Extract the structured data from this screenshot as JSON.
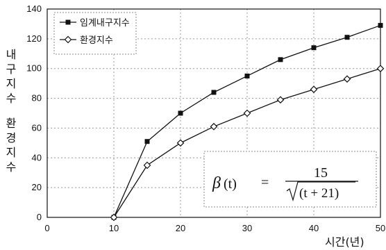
{
  "chart_data": {
    "type": "line",
    "xlim": [
      0,
      50
    ],
    "ylim": [
      0,
      140
    ],
    "xticks": [
      0,
      10,
      20,
      30,
      40,
      50
    ],
    "yticks": [
      0,
      20,
      40,
      60,
      80,
      100,
      120,
      140
    ],
    "xlabel": "시간(년)",
    "ylabel_lines": [
      "내",
      "구",
      "지",
      "수",
      "",
      "환",
      "경",
      "지",
      "수"
    ],
    "grid": true,
    "legend_position": "top-left",
    "series": [
      {
        "name": "임계내구지수",
        "marker": "square-filled",
        "color": "#111111",
        "x": [
          10,
          15,
          20,
          25,
          30,
          35,
          40,
          45,
          50
        ],
        "y": [
          0,
          51,
          70,
          84,
          95,
          106,
          114,
          121,
          129
        ]
      },
      {
        "name": "환경지수",
        "marker": "diamond-open",
        "color": "#111111",
        "x": [
          10,
          15,
          20,
          25,
          30,
          35,
          40,
          45,
          50
        ],
        "y": [
          0,
          35,
          50,
          61,
          70,
          79,
          86,
          93,
          100
        ]
      }
    ],
    "annotation": {
      "beta": "β",
      "arg": "(t)",
      "eq": "=",
      "numerator": "15",
      "radicand": "(t + 21)"
    }
  }
}
